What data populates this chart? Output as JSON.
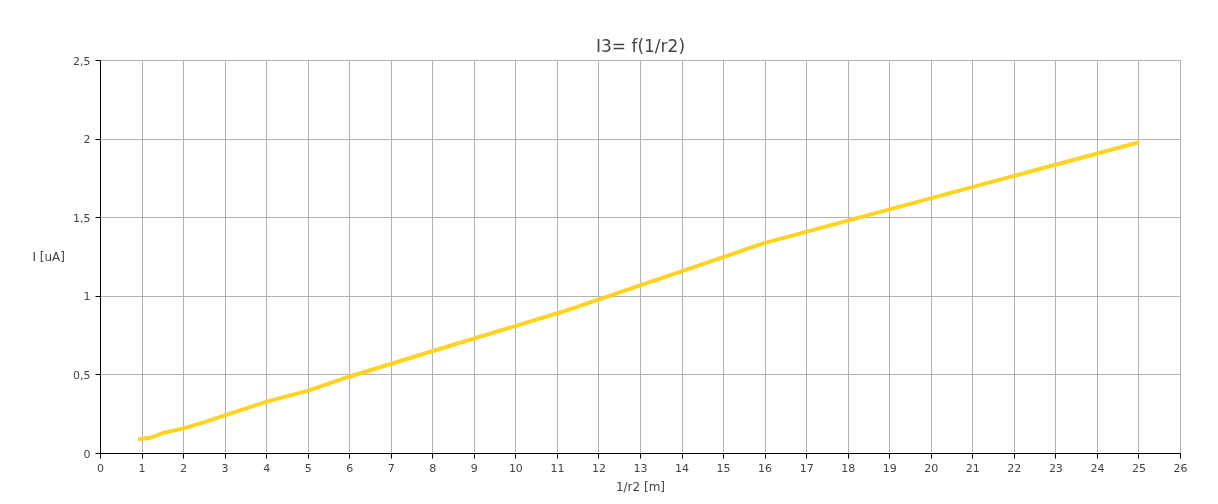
{
  "chart_data": {
    "type": "line",
    "title": "I3= f(1/r2)",
    "xlabel": "1/r2 [m]",
    "ylabel": "I [uA]",
    "xlim": [
      0,
      26
    ],
    "xticks": [
      0,
      1,
      2,
      3,
      4,
      5,
      6,
      7,
      8,
      9,
      10,
      11,
      12,
      13,
      14,
      15,
      16,
      17,
      18,
      19,
      20,
      21,
      22,
      23,
      24,
      25,
      26
    ],
    "ylim": [
      0,
      2.5
    ],
    "yticks": [
      0,
      {
        "value": 0.5,
        "label": "0,5"
      },
      1,
      {
        "value": 1.5,
        "label": "1,5"
      },
      2,
      {
        "value": 2.5,
        "label": "2,5"
      }
    ],
    "grid": true,
    "marker": "none",
    "line_style": "solid",
    "series": [
      {
        "color": "#ffd320",
        "x": [
          0.9,
          1.2,
          1.5,
          2,
          2.5,
          3.3,
          4,
          5,
          6,
          8.1,
          11.1,
          16,
          25
        ],
        "values": [
          0.09,
          0.1,
          0.13,
          0.16,
          0.2,
          0.27,
          0.33,
          0.4,
          0.49,
          0.66,
          0.9,
          1.34,
          1.98
        ]
      }
    ]
  }
}
